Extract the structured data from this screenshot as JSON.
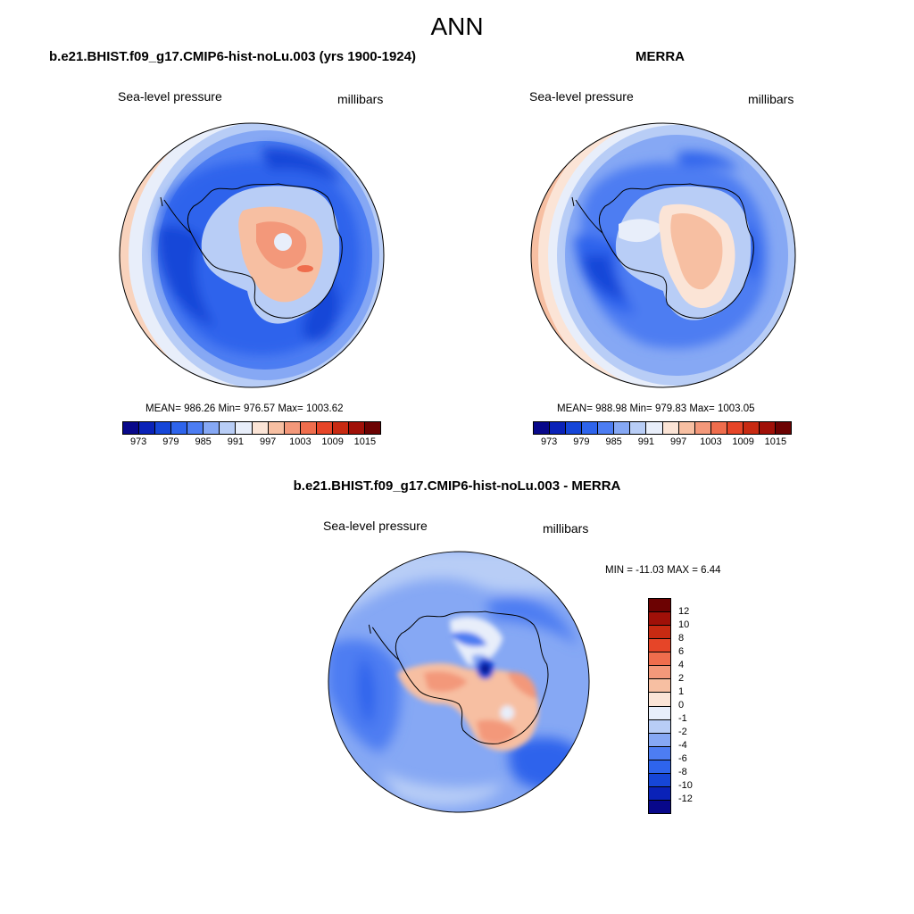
{
  "figure": {
    "title": "ANN"
  },
  "palette": {
    "full": [
      "#08088a",
      "#0a22b8",
      "#1646d8",
      "#2e64ec",
      "#4d7df2",
      "#86a8f4",
      "#b8cdf6",
      "#e8eefa",
      "#fbe4d6",
      "#f7bfa2",
      "#f3987a",
      "#ef6d4d",
      "#e64528",
      "#c82a12",
      "#a01008",
      "#6c0202"
    ],
    "diff": [
      "#6c0202",
      "#a01008",
      "#c82a12",
      "#e64528",
      "#ef6d4d",
      "#f3987a",
      "#f7bfa2",
      "#fbe4d6",
      "#e8eefa",
      "#b8cdf6",
      "#86a8f4",
      "#4d7df2",
      "#2e64ec",
      "#1646d8",
      "#0a22b8",
      "#08088a"
    ]
  },
  "panels": [
    {
      "title": "b.e21.BHIST.f09_g17.CMIP6-hist-noLu.003 (yrs 1900-1924)",
      "variable": "Sea-level pressure",
      "units": "millibars",
      "stats": "MEAN= 986.26  Min= 976.57  Max= 1003.62",
      "colorbar_ticks": [
        "973",
        "979",
        "985",
        "991",
        "997",
        "1003",
        "1009",
        "1015"
      ]
    },
    {
      "title": "MERRA",
      "variable": "Sea-level pressure",
      "units": "millibars",
      "stats": "MEAN= 988.98  Min= 979.83  Max= 1003.05",
      "colorbar_ticks": [
        "973",
        "979",
        "985",
        "991",
        "997",
        "1003",
        "1009",
        "1015"
      ]
    },
    {
      "title": "b.e21.BHIST.f09_g17.CMIP6-hist-noLu.003 - MERRA",
      "variable": "Sea-level pressure",
      "units": "millibars",
      "stats": "MIN = -11.03 MAX =   6.44",
      "colorbar_ticks": [
        "12",
        "10",
        "8",
        "6",
        "4",
        "2",
        "1",
        "0",
        "-1",
        "-2",
        "-4",
        "-6",
        "-8",
        "-10",
        "-12"
      ]
    }
  ]
}
